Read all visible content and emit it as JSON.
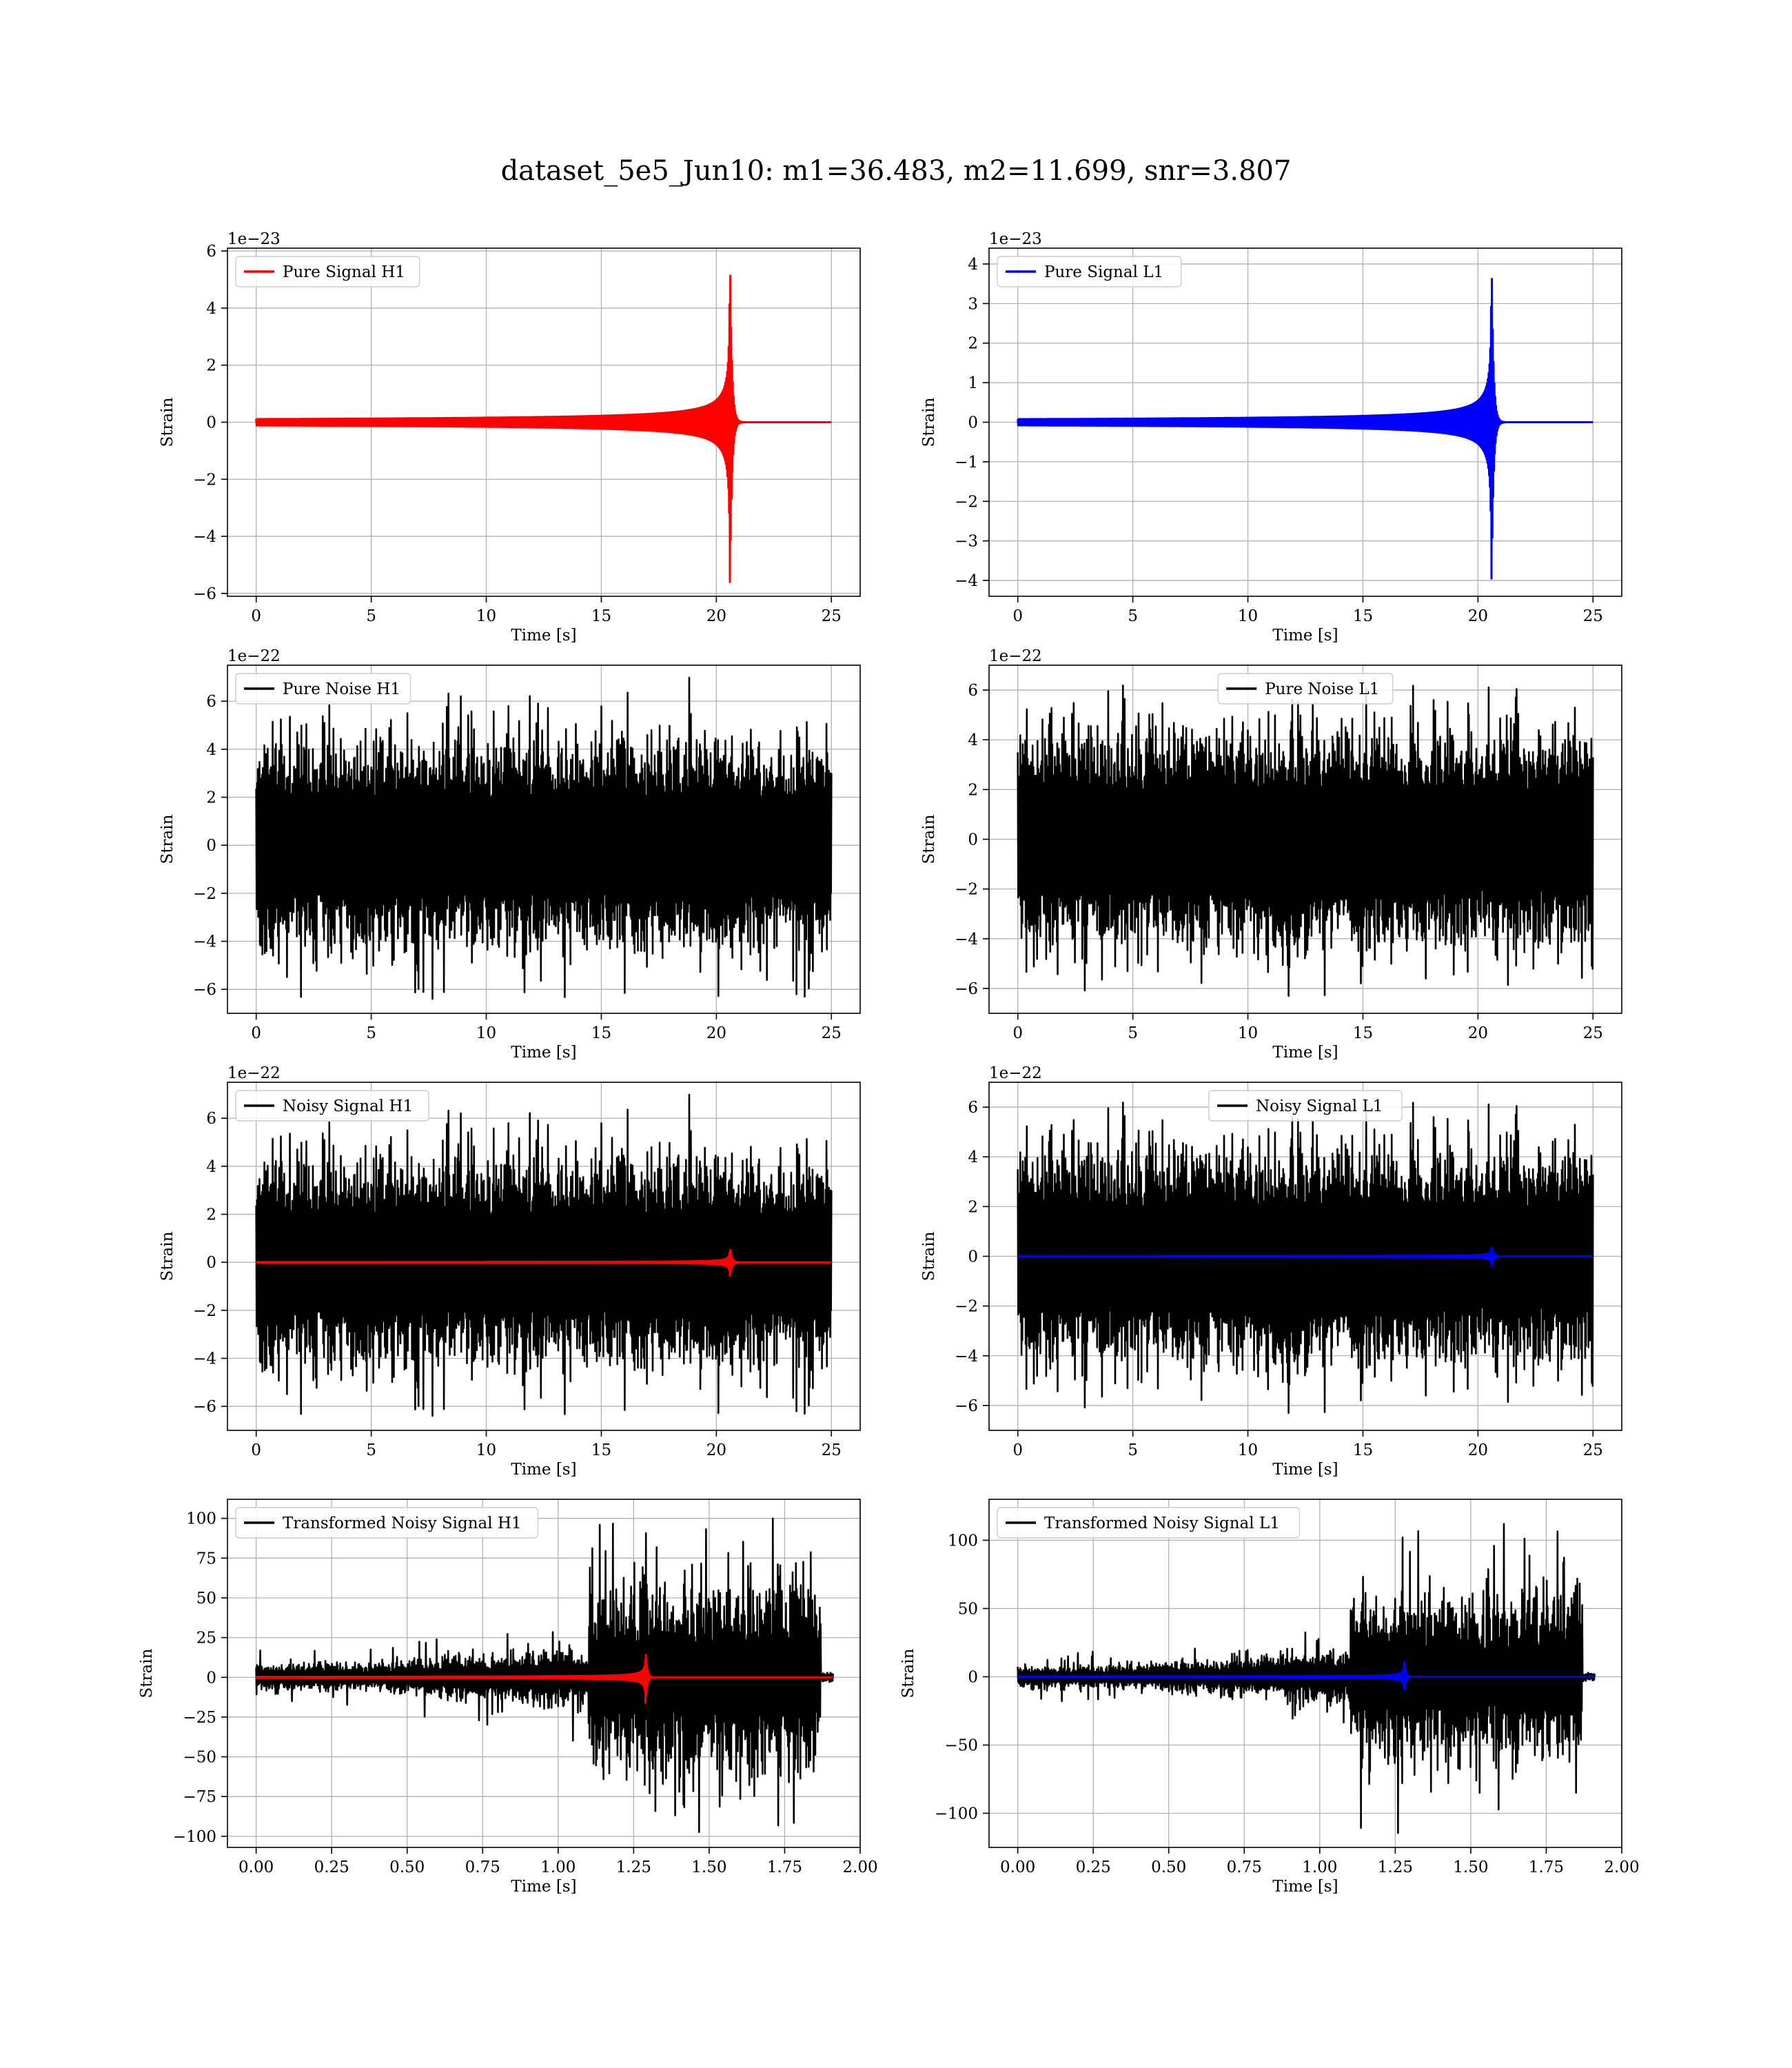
{
  "figure": {
    "title": "dataset_5e5_Jun10: m1=36.483, m2=11.699, snr=3.807"
  },
  "colors": {
    "h1_signal": "#ff0000",
    "l1_signal": "#0000ff",
    "noise": "#000000",
    "grid": "#b0b0b0"
  },
  "chart_data": [
    {
      "type": "line",
      "legend": "Pure Signal H1",
      "legend_position": "top-left",
      "xlabel": "Time [s]",
      "ylabel": "Strain",
      "offset_text": "1e−23",
      "xlim": [
        -1.25,
        26.25
      ],
      "ylim": [
        -6.1,
        6.1
      ],
      "xticks": [
        0,
        5,
        10,
        15,
        20,
        25
      ],
      "xtick_labels": [
        "0",
        "5",
        "10",
        "15",
        "20",
        "25"
      ],
      "yticks": [
        -6,
        -4,
        -2,
        0,
        2,
        4,
        6
      ],
      "ytick_labels": [
        "−6",
        "−4",
        "−2",
        "0",
        "2",
        "4",
        "6"
      ],
      "grid": true,
      "series": [
        {
          "name": "Pure Signal H1",
          "kind": "chirp",
          "color_key": "h1_signal",
          "x_start": 0,
          "x_end": 25,
          "merger": 20.6,
          "peak": 5.6
        }
      ]
    },
    {
      "type": "line",
      "legend": "Pure Signal L1",
      "legend_position": "top-left",
      "xlabel": "Time [s]",
      "ylabel": "Strain",
      "offset_text": "1e−23",
      "xlim": [
        -1.25,
        26.25
      ],
      "ylim": [
        -4.4,
        4.4
      ],
      "xticks": [
        0,
        5,
        10,
        15,
        20,
        25
      ],
      "xtick_labels": [
        "0",
        "5",
        "10",
        "15",
        "20",
        "25"
      ],
      "yticks": [
        -4,
        -3,
        -2,
        -1,
        0,
        1,
        2,
        3,
        4
      ],
      "ytick_labels": [
        "−4",
        "−3",
        "−2",
        "−1",
        "0",
        "1",
        "2",
        "3",
        "4"
      ],
      "grid": true,
      "series": [
        {
          "name": "Pure Signal L1",
          "kind": "chirp",
          "color_key": "l1_signal",
          "x_start": 0,
          "x_end": 25,
          "merger": 20.6,
          "peak": 3.95
        }
      ]
    },
    {
      "type": "line",
      "legend": "Pure Noise H1",
      "legend_position": "top-left",
      "xlabel": "Time [s]",
      "ylabel": "Strain",
      "offset_text": "1e−22",
      "xlim": [
        -1.25,
        26.25
      ],
      "ylim": [
        -7.0,
        7.5
      ],
      "xticks": [
        0,
        5,
        10,
        15,
        20,
        25
      ],
      "xtick_labels": [
        "0",
        "5",
        "10",
        "15",
        "20",
        "25"
      ],
      "yticks": [
        -6,
        -4,
        -2,
        0,
        2,
        4,
        6
      ],
      "ytick_labels": [
        "−6",
        "−4",
        "−2",
        "0",
        "2",
        "4",
        "6"
      ],
      "grid": true,
      "series": [
        {
          "name": "Pure Noise H1",
          "kind": "noise",
          "color_key": "noise",
          "x_start": 0,
          "x_end": 25,
          "core": 3.6,
          "spike_max": 7.0,
          "spike_min": -6.4,
          "seed": 11
        }
      ]
    },
    {
      "type": "line",
      "legend": "Pure Noise L1",
      "legend_position": "top-center",
      "xlabel": "Time [s]",
      "ylabel": "Strain",
      "offset_text": "1e−22",
      "xlim": [
        -1.25,
        26.25
      ],
      "ylim": [
        -7.0,
        7.0
      ],
      "xticks": [
        0,
        5,
        10,
        15,
        20,
        25
      ],
      "xtick_labels": [
        "0",
        "5",
        "10",
        "15",
        "20",
        "25"
      ],
      "yticks": [
        -6,
        -4,
        -2,
        0,
        2,
        4,
        6
      ],
      "ytick_labels": [
        "−6",
        "−4",
        "−2",
        "0",
        "2",
        "4",
        "6"
      ],
      "grid": true,
      "series": [
        {
          "name": "Pure Noise L1",
          "kind": "noise",
          "color_key": "noise",
          "x_start": 0,
          "x_end": 25,
          "core": 3.6,
          "spike_max": 6.5,
          "spike_min": -6.3,
          "seed": 23
        }
      ]
    },
    {
      "type": "line",
      "legend": "Noisy Signal H1",
      "legend_position": "top-left",
      "xlabel": "Time [s]",
      "ylabel": "Strain",
      "offset_text": "1e−22",
      "xlim": [
        -1.25,
        26.25
      ],
      "ylim": [
        -7.0,
        7.5
      ],
      "xticks": [
        0,
        5,
        10,
        15,
        20,
        25
      ],
      "xtick_labels": [
        "0",
        "5",
        "10",
        "15",
        "20",
        "25"
      ],
      "yticks": [
        -6,
        -4,
        -2,
        0,
        2,
        4,
        6
      ],
      "ytick_labels": [
        "−6",
        "−4",
        "−2",
        "0",
        "2",
        "4",
        "6"
      ],
      "grid": true,
      "series": [
        {
          "name": "Noisy Signal H1",
          "kind": "noise",
          "color_key": "noise",
          "x_start": 0,
          "x_end": 25,
          "core": 3.6,
          "spike_max": 7.0,
          "spike_min": -6.4,
          "seed": 11
        },
        {
          "name": "",
          "kind": "chirp",
          "color_key": "h1_signal",
          "x_start": 0,
          "x_end": 25,
          "merger": 20.6,
          "peak": 0.56
        }
      ]
    },
    {
      "type": "line",
      "legend": "Noisy Signal L1",
      "legend_position": "top-center",
      "xlabel": "Time [s]",
      "ylabel": "Strain",
      "offset_text": "1e−22",
      "xlim": [
        -1.25,
        26.25
      ],
      "ylim": [
        -7.0,
        7.0
      ],
      "xticks": [
        0,
        5,
        10,
        15,
        20,
        25
      ],
      "xtick_labels": [
        "0",
        "5",
        "10",
        "15",
        "20",
        "25"
      ],
      "yticks": [
        -6,
        -4,
        -2,
        0,
        2,
        4,
        6
      ],
      "ytick_labels": [
        "−6",
        "−4",
        "−2",
        "0",
        "2",
        "4",
        "6"
      ],
      "grid": true,
      "series": [
        {
          "name": "Noisy Signal L1",
          "kind": "noise",
          "color_key": "noise",
          "x_start": 0,
          "x_end": 25,
          "core": 3.6,
          "spike_max": 6.5,
          "spike_min": -6.3,
          "seed": 23
        },
        {
          "name": "",
          "kind": "chirp",
          "color_key": "l1_signal",
          "x_start": 0,
          "x_end": 25,
          "merger": 20.6,
          "peak": 0.4
        }
      ]
    },
    {
      "type": "line",
      "legend": "Transformed Noisy Signal H1",
      "legend_position": "top-left",
      "xlabel": "Time [s]",
      "ylabel": "Strain",
      "offset_text": "",
      "xlim": [
        -0.095,
        2.0
      ],
      "ylim": [
        -107,
        112
      ],
      "xticks": [
        0.0,
        0.25,
        0.5,
        0.75,
        1.0,
        1.25,
        1.5,
        1.75,
        2.0
      ],
      "xtick_labels": [
        "0.00",
        "0.25",
        "0.50",
        "0.75",
        "1.00",
        "1.25",
        "1.50",
        "1.75",
        "2.00"
      ],
      "yticks": [
        -100,
        -75,
        -50,
        -25,
        0,
        25,
        50,
        75,
        100
      ],
      "ytick_labels": [
        "−100",
        "−75",
        "−50",
        "−25",
        "0",
        "25",
        "50",
        "75",
        "100"
      ],
      "grid": true,
      "series": [
        {
          "name": "Transformed Noisy Signal H1",
          "kind": "whitened",
          "color_key": "noise",
          "x_start": 0,
          "x_end": 1.91,
          "burst_start": 1.1,
          "burst_end": 1.87,
          "early_amp": 8,
          "mid_amp": 18,
          "burst_amp": 55,
          "spike_max": 103,
          "spike_min": -98,
          "seed": 37
        },
        {
          "name": "",
          "kind": "chirp",
          "color_key": "h1_signal",
          "x_start": 0,
          "x_end": 1.91,
          "merger": 1.29,
          "peak": 16
        }
      ]
    },
    {
      "type": "line",
      "legend": "Transformed Noisy Signal L1",
      "legend_position": "top-left",
      "xlabel": "Time [s]",
      "ylabel": "Strain",
      "offset_text": "",
      "xlim": [
        -0.095,
        2.0
      ],
      "ylim": [
        -125,
        130
      ],
      "xticks": [
        0.0,
        0.25,
        0.5,
        0.75,
        1.0,
        1.25,
        1.5,
        1.75,
        2.0
      ],
      "xtick_labels": [
        "0.00",
        "0.25",
        "0.50",
        "0.75",
        "1.00",
        "1.25",
        "1.50",
        "1.75",
        "2.00"
      ],
      "yticks": [
        -100,
        -50,
        0,
        50,
        100
      ],
      "ytick_labels": [
        "−100",
        "−50",
        "0",
        "50",
        "100"
      ],
      "grid": true,
      "series": [
        {
          "name": "Transformed Noisy Signal L1",
          "kind": "whitened",
          "color_key": "noise",
          "x_start": 0,
          "x_end": 1.91,
          "burst_start": 1.1,
          "burst_end": 1.87,
          "early_amp": 8,
          "mid_amp": 18,
          "burst_amp": 55,
          "spike_max": 122,
          "spike_min": -115,
          "seed": 53
        },
        {
          "name": "",
          "kind": "chirp",
          "color_key": "l1_signal",
          "x_start": 0,
          "x_end": 1.91,
          "merger": 1.28,
          "peak": 11
        }
      ]
    }
  ]
}
